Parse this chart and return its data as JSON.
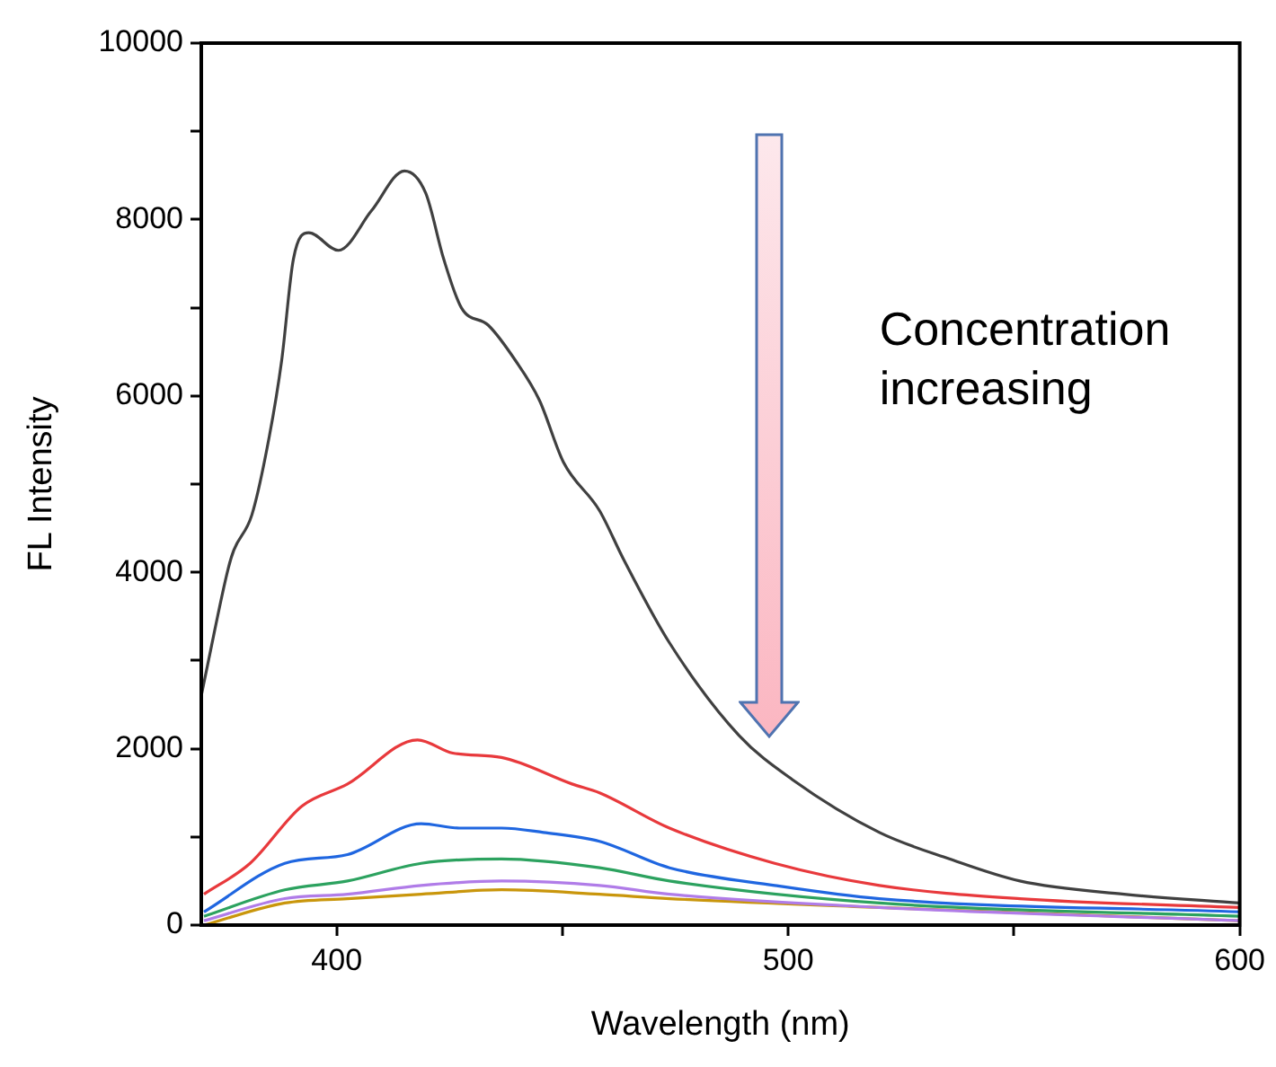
{
  "chart_data": {
    "type": "line",
    "xlabel": "Wavelength (nm)",
    "ylabel": "FL Intensity",
    "xlim": [
      370,
      600
    ],
    "xticks": [
      400,
      {
        "value": 450,
        "label": null
      },
      500,
      {
        "value": 550,
        "label": null
      },
      600
    ],
    "ylim": [
      0,
      10000
    ],
    "yticks": [
      0,
      {
        "value": 1000,
        "label": null
      },
      2000,
      {
        "value": 3000,
        "label": null
      },
      4000,
      {
        "value": 5000,
        "label": null
      },
      6000,
      {
        "value": 7000,
        "label": null
      },
      8000,
      {
        "value": 9000,
        "label": null
      },
      10000
    ],
    "grid": false,
    "legend": false,
    "marker": "none",
    "line_style": "solid",
    "annotations": [
      "Concentration increasing"
    ],
    "series": [
      {
        "color": "#404040",
        "x": [
          370,
          371.4,
          376,
          377.2,
          381.2,
          385.1,
          387.8,
          390.4,
          393.8,
          400.4,
          407.7,
          415,
          419.7,
          423.7,
          427.6,
          433.6,
          439.6,
          444.9,
          450.2,
          458.2,
          463.5,
          473.7,
          489.1,
          500.9,
          520.2,
          535.7,
          551.3,
          574.4,
          600
        ],
        "values": [
          2600,
          2950,
          4050,
          4250,
          4650,
          5550,
          6400,
          7550,
          7850,
          7650,
          8100,
          8550,
          8300,
          7550,
          7000,
          6800,
          6400,
          5950,
          5250,
          4700,
          4150,
          3200,
          2150,
          1650,
          1050,
          750,
          500,
          350,
          250
        ]
      },
      {
        "color": "#e8393c",
        "x": [
          370.6,
          380.8,
          392.3,
          402.4,
          417.9,
          425.7,
          436.5,
          452.1,
          458.2,
          473.7,
          497,
          520.2,
          551.3,
          600
        ],
        "values": [
          350,
          700,
          1350,
          1600,
          2100,
          1950,
          1900,
          1600,
          1500,
          1100,
          700,
          450,
          300,
          200
        ]
      },
      {
        "color": "#1f66e0",
        "x": [
          370.6,
          388.5,
          402.4,
          418.7,
          427.2,
          436.5,
          445.8,
          458.2,
          473.7,
          497,
          520.2,
          600
        ],
        "values": [
          150,
          700,
          800,
          1150,
          1100,
          1100,
          1050,
          950,
          650,
          450,
          300,
          150
        ]
      },
      {
        "color": "#2ca25f",
        "x": [
          370.6,
          388.5,
          402.4,
          418.7,
          436.5,
          458.2,
          473.7,
          520.2,
          600
        ],
        "values": [
          100,
          400,
          500,
          700,
          750,
          650,
          500,
          250,
          100
        ]
      },
      {
        "color": "#b07ce8",
        "x": [
          370.6,
          388.5,
          402.4,
          418.7,
          436.5,
          458.2,
          473.7,
          520.2,
          600
        ],
        "values": [
          50,
          300,
          350,
          450,
          500,
          450,
          350,
          200,
          50
        ]
      },
      {
        "color": "#c9960c",
        "x": [
          370.6,
          388.5,
          402.4,
          418.7,
          436.5,
          458.2,
          473.7,
          520.2,
          600
        ],
        "values": [
          0,
          250,
          300,
          350,
          400,
          350,
          300,
          200,
          50
        ]
      }
    ]
  }
}
